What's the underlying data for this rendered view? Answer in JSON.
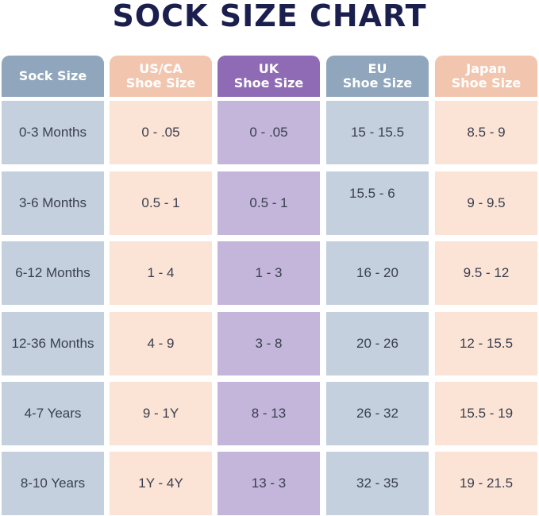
{
  "title": "SOCK SIZE CHART",
  "colors": {
    "title": "#1b1f4d",
    "sock_header": "#8fa6bd",
    "us_header": "#f2c6ae",
    "uk_header": "#8f6bb5",
    "eu_header": "#8fa6bd",
    "jp_header": "#f2c6ae",
    "sock_cell": "#c4d0de",
    "us_cell": "#fbe3d6",
    "uk_cell": "#c4b5da",
    "eu_cell": "#c4d0de",
    "jp_cell": "#fbe3d6"
  },
  "headers": [
    {
      "line1": "Sock Size",
      "line2": ""
    },
    {
      "line1": "US/CA",
      "line2": "Shoe Size"
    },
    {
      "line1": "UK",
      "line2": "Shoe Size"
    },
    {
      "line1": "EU",
      "line2": "Shoe Size"
    },
    {
      "line1": "Japan",
      "line2": "Shoe Size"
    }
  ],
  "rows": [
    [
      "0-3 Months",
      "0 - .05",
      "0 - .05",
      "15 - 15.5",
      "8.5 - 9"
    ],
    [
      "3-6 Months",
      "0.5 - 1",
      "0.5 - 1",
      "15.5 - 6",
      "9 - 9.5"
    ],
    [
      "6-12 Months",
      "1 - 4",
      "1 - 3",
      "16 - 20",
      "9.5 - 12"
    ],
    [
      "12-36 Months",
      "4 - 9",
      "3 - 8",
      "20 - 26",
      "12 - 15.5"
    ],
    [
      "4-7 Years",
      "9 - 1Y",
      "8 - 13",
      "26 - 32",
      "15.5 - 19"
    ],
    [
      "8-10 Years",
      "1Y - 4Y",
      "13 - 3",
      "32 - 35",
      "19 - 21.5"
    ]
  ]
}
